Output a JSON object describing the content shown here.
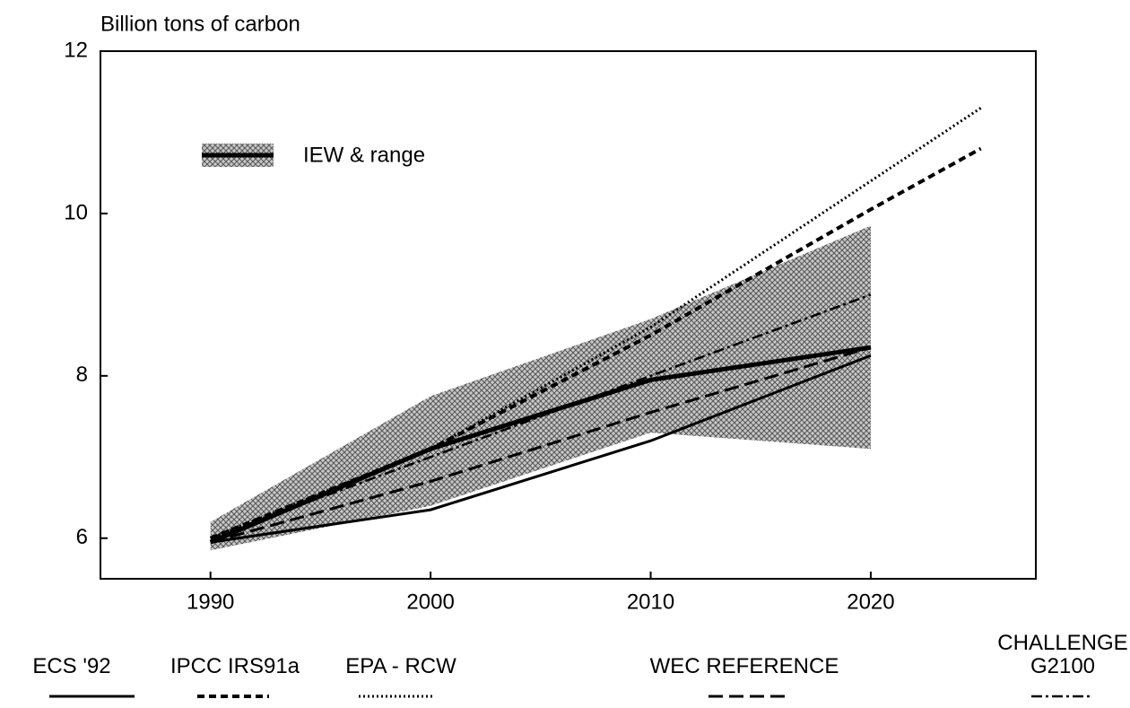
{
  "chart_data": {
    "type": "line",
    "ylabel": "Billion tons of carbon",
    "xlim": [
      1985,
      2027.5
    ],
    "ylim": [
      5.5,
      12
    ],
    "xticks": [
      1990,
      2000,
      2010,
      2020
    ],
    "yticks": [
      6,
      8,
      10,
      12
    ],
    "series": [
      {
        "name": "ECS '92",
        "color": "#000000",
        "style": "solid",
        "x": [
          1990,
          2000,
          2010,
          2020
        ],
        "values": [
          5.95,
          6.35,
          7.2,
          8.25
        ]
      },
      {
        "name": "IPCC IRS91a",
        "color": "#000000",
        "style": "dashed",
        "x": [
          1990,
          2000,
          2010,
          2020,
          2025
        ],
        "values": [
          6.0,
          7.1,
          8.5,
          10.05,
          10.8
        ]
      },
      {
        "name": "EPA - RCW",
        "color": "#000000",
        "style": "dotted",
        "x": [
          1990,
          2000,
          2010,
          2025
        ],
        "values": [
          6.0,
          7.1,
          8.6,
          11.3
        ]
      },
      {
        "name": "WEC REFERENCE",
        "color": "#000000",
        "style": "longdash",
        "x": [
          1990,
          2000,
          2010,
          2020
        ],
        "values": [
          5.95,
          6.7,
          7.55,
          8.35
        ]
      },
      {
        "name": "CHALLENGE G2100",
        "color": "#000000",
        "style": "dashdot",
        "x": [
          1990,
          2000,
          2010,
          2020
        ],
        "values": [
          6.0,
          7.0,
          8.0,
          9.0
        ]
      },
      {
        "name": "IEW & range",
        "color": "#000000",
        "style": "thick",
        "x": [
          1990,
          2000,
          2010,
          2020
        ],
        "values": [
          5.95,
          7.1,
          7.95,
          8.35
        ],
        "range_low": [
          5.85,
          6.4,
          7.3,
          7.1
        ],
        "range_high": [
          6.2,
          7.75,
          8.7,
          9.85
        ]
      }
    ]
  }
}
